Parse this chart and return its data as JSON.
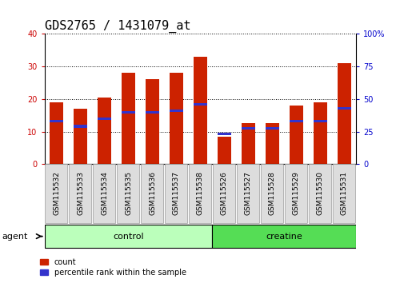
{
  "title": "GDS2765 / 1431079_at",
  "samples": [
    "GSM115532",
    "GSM115533",
    "GSM115534",
    "GSM115535",
    "GSM115536",
    "GSM115537",
    "GSM115538",
    "GSM115526",
    "GSM115527",
    "GSM115528",
    "GSM115529",
    "GSM115530",
    "GSM115531"
  ],
  "count": [
    19,
    17,
    20.5,
    28,
    26,
    28,
    33,
    8.5,
    12.5,
    12.5,
    18,
    19,
    31
  ],
  "percentile": [
    33,
    29,
    35,
    40,
    40,
    41,
    46,
    23,
    27.5,
    27.5,
    33,
    33,
    43
  ],
  "count_color": "#CC2200",
  "percentile_color": "#3333CC",
  "bar_width": 0.55,
  "ylim_left": [
    0,
    40
  ],
  "ylim_right": [
    0,
    100
  ],
  "yticks_left": [
    0,
    10,
    20,
    30,
    40
  ],
  "yticks_right": [
    0,
    25,
    50,
    75,
    100
  ],
  "groups": [
    {
      "label": "control",
      "start": 0,
      "end": 7,
      "color": "#BBFFBB"
    },
    {
      "label": "creatine",
      "start": 7,
      "end": 13,
      "color": "#55DD55"
    }
  ],
  "group_label": "agent",
  "legend_count": "count",
  "legend_percentile": "percentile rank within the sample",
  "title_fontsize": 11,
  "tick_fontsize": 7,
  "axis_label_color_left": "#CC0000",
  "axis_label_color_right": "#0000CC",
  "background_color": "#ffffff",
  "plot_bg_color": "#ffffff",
  "gridcolor": "#000000"
}
